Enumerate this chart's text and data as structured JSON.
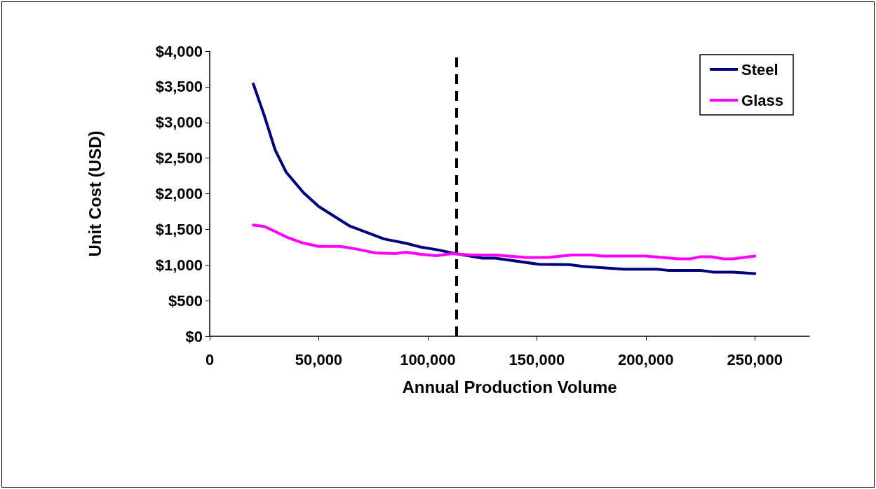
{
  "chart_data": {
    "type": "line",
    "xlabel": "Annual Production Volume",
    "ylabel": "Unit Cost (USD)",
    "xlim": [
      0,
      275000
    ],
    "xticks": [
      0,
      {
        "value": 50000,
        "label": "50,000"
      },
      {
        "value": 100000,
        "label": "100,000"
      },
      {
        "value": 150000,
        "label": "150,000"
      },
      {
        "value": 200000,
        "label": "200,000"
      },
      {
        "value": 250000,
        "label": "250,000"
      }
    ],
    "ylim": [
      0,
      4000
    ],
    "yticks": [
      {
        "value": 0,
        "label": "$0"
      },
      {
        "value": 500,
        "label": "$500"
      },
      {
        "value": 1000,
        "label": "$1,000"
      },
      {
        "value": 1500,
        "label": "$1,500"
      },
      {
        "value": 2000,
        "label": "$2,000"
      },
      {
        "value": 2500,
        "label": "$2,500"
      },
      {
        "value": 3000,
        "label": "$3,000"
      },
      {
        "value": 3500,
        "label": "$3,500"
      },
      {
        "value": 4000,
        "label": "$4,000"
      }
    ],
    "grid": false,
    "legend": "top right",
    "marker": "none",
    "line_style": "solid",
    "series": [
      {
        "name": "Steel",
        "color": "#000080",
        "x": [
          20000,
          25000,
          30000,
          35000,
          43000,
          50000,
          64000,
          80000,
          90000,
          97000,
          105000,
          111000,
          125000,
          131000,
          151000,
          165000,
          171000,
          190000,
          205000,
          210000,
          225000,
          231000,
          240000,
          250000
        ],
        "values": [
          3540,
          3100,
          2615,
          2305,
          2015,
          1820,
          1550,
          1365,
          1305,
          1250,
          1210,
          1170,
          1095,
          1095,
          1010,
          1005,
          980,
          940,
          940,
          925,
          925,
          900,
          900,
          880
        ]
      },
      {
        "name": "Glass",
        "color": "#ff00ff",
        "x": [
          20000,
          25000,
          30000,
          35000,
          42000,
          50000,
          60000,
          68000,
          76000,
          85000,
          90000,
          97000,
          104000,
          111000,
          120000,
          131000,
          145000,
          155000,
          166000,
          175000,
          180000,
          200000,
          215000,
          220000,
          225000,
          230000,
          236000,
          240000,
          250000
        ],
        "values": [
          1560,
          1540,
          1470,
          1395,
          1315,
          1260,
          1260,
          1220,
          1170,
          1160,
          1180,
          1150,
          1130,
          1160,
          1140,
          1140,
          1105,
          1105,
          1140,
          1140,
          1125,
          1125,
          1085,
          1085,
          1115,
          1115,
          1085,
          1085,
          1125
        ]
      }
    ],
    "ref_lines": [
      {
        "axis": "x",
        "value": 113000,
        "color": "#000000",
        "line_style": "dashed"
      }
    ]
  }
}
